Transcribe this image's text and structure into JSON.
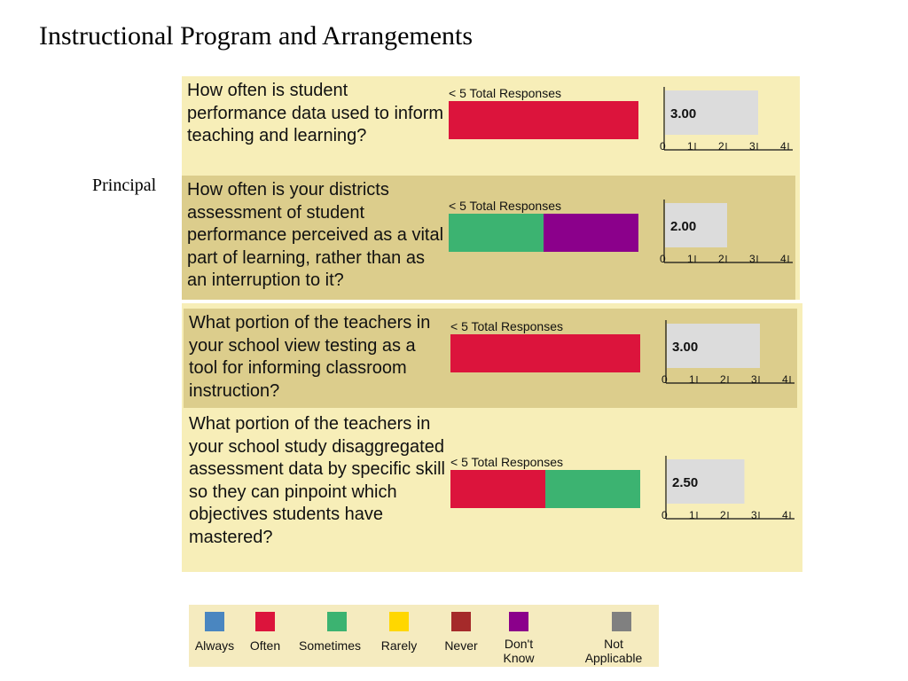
{
  "title": "Instructional Program and Arrangements",
  "side_label": "Principal",
  "total_label": "< 5 Total Responses",
  "colors": {
    "Always": "#4a86c0",
    "Often": "#dc143c",
    "Sometimes": "#3cb371",
    "Rarely": "#ffd700",
    "Never": "#a52a2a",
    "Don't Know": "#8b008b",
    "Not Applicable": "#808080"
  },
  "legend": [
    {
      "key": "Always",
      "label": "Always",
      "color": "#4a86c0"
    },
    {
      "key": "Often",
      "label": "Often",
      "color": "#dc143c"
    },
    {
      "key": "Sometimes",
      "label": "Sometimes",
      "color": "#3cb371"
    },
    {
      "key": "Rarely",
      "label": "Rarely",
      "color": "#ffd700"
    },
    {
      "key": "Never",
      "label": "Never",
      "color": "#a52a2a"
    },
    {
      "key": "Dont_Know",
      "label": "Don't\nKnow",
      "color": "#8b008b"
    },
    {
      "key": "Not_Applicable",
      "label": "Not\nApplicable",
      "color": "#808080"
    }
  ],
  "chart_data": {
    "type": "bar",
    "x_ticks": [
      "0",
      "1",
      "2",
      "3",
      "4"
    ],
    "xlim": [
      0,
      4
    ],
    "questions": [
      {
        "text": "How often is student performance data used to inform teaching and learning?",
        "distribution": [
          {
            "category": "Often",
            "share": 1.0
          }
        ],
        "mean": 3.0,
        "mean_label": "3.00"
      },
      {
        "text": "How often is your districts assessment of student performance perceived as a vital part of learning, rather than as an interruption to it?",
        "distribution": [
          {
            "category": "Sometimes",
            "share": 0.5
          },
          {
            "category": "Don't Know",
            "share": 0.5
          }
        ],
        "mean": 2.0,
        "mean_label": "2.00"
      },
      {
        "text": "What portion of the teachers in your school view testing as a tool for informing classroom instruction?",
        "distribution": [
          {
            "category": "Often",
            "share": 1.0
          }
        ],
        "mean": 3.0,
        "mean_label": "3.00"
      },
      {
        "text": "What portion of the teachers in your school study disaggregated assessment data by specific skill so they can pinpoint which objectives students have mastered?",
        "distribution": [
          {
            "category": "Often",
            "share": 0.5
          },
          {
            "category": "Sometimes",
            "share": 0.5
          }
        ],
        "mean": 2.5,
        "mean_label": "2.50"
      }
    ]
  }
}
